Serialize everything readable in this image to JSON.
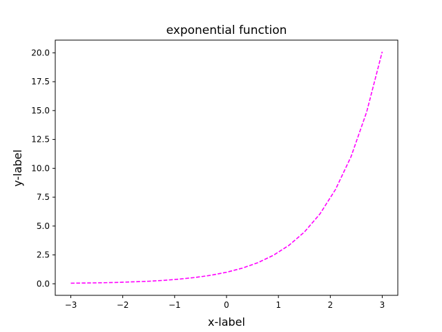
{
  "chart_data": {
    "type": "line",
    "title": "exponential function",
    "xlabel": "x-label",
    "ylabel": "y-label",
    "xlim": [
      -3.3,
      3.3
    ],
    "ylim": [
      -1.0,
      21.1
    ],
    "grid": false,
    "xticks": [
      -3,
      -2,
      -1,
      0,
      1,
      2,
      3
    ],
    "xtick_labels": [
      "−3",
      "−2",
      "−1",
      "0",
      "1",
      "2",
      "3"
    ],
    "yticks": [
      0,
      2.5,
      5,
      7.5,
      10,
      12.5,
      15,
      17.5,
      20
    ],
    "ytick_labels": [
      "0.0",
      "2.5",
      "5.0",
      "7.5",
      "10.0",
      "12.5",
      "15.0",
      "17.5",
      "20.0"
    ],
    "series": [
      {
        "color": "#ff00ff",
        "linestyle": "dashed",
        "x": [
          -3.0,
          -2.7,
          -2.4,
          -2.1,
          -1.8,
          -1.5,
          -1.2,
          -0.9,
          -0.6,
          -0.3,
          0.0,
          0.3,
          0.6,
          0.9,
          1.2,
          1.5,
          1.8,
          2.1,
          2.4,
          2.7,
          3.0
        ],
        "y": [
          0.05,
          0.07,
          0.09,
          0.12,
          0.17,
          0.22,
          0.3,
          0.41,
          0.55,
          0.74,
          1.0,
          1.35,
          1.82,
          2.46,
          3.32,
          4.48,
          6.05,
          8.17,
          11.02,
          14.88,
          20.09
        ]
      }
    ]
  }
}
